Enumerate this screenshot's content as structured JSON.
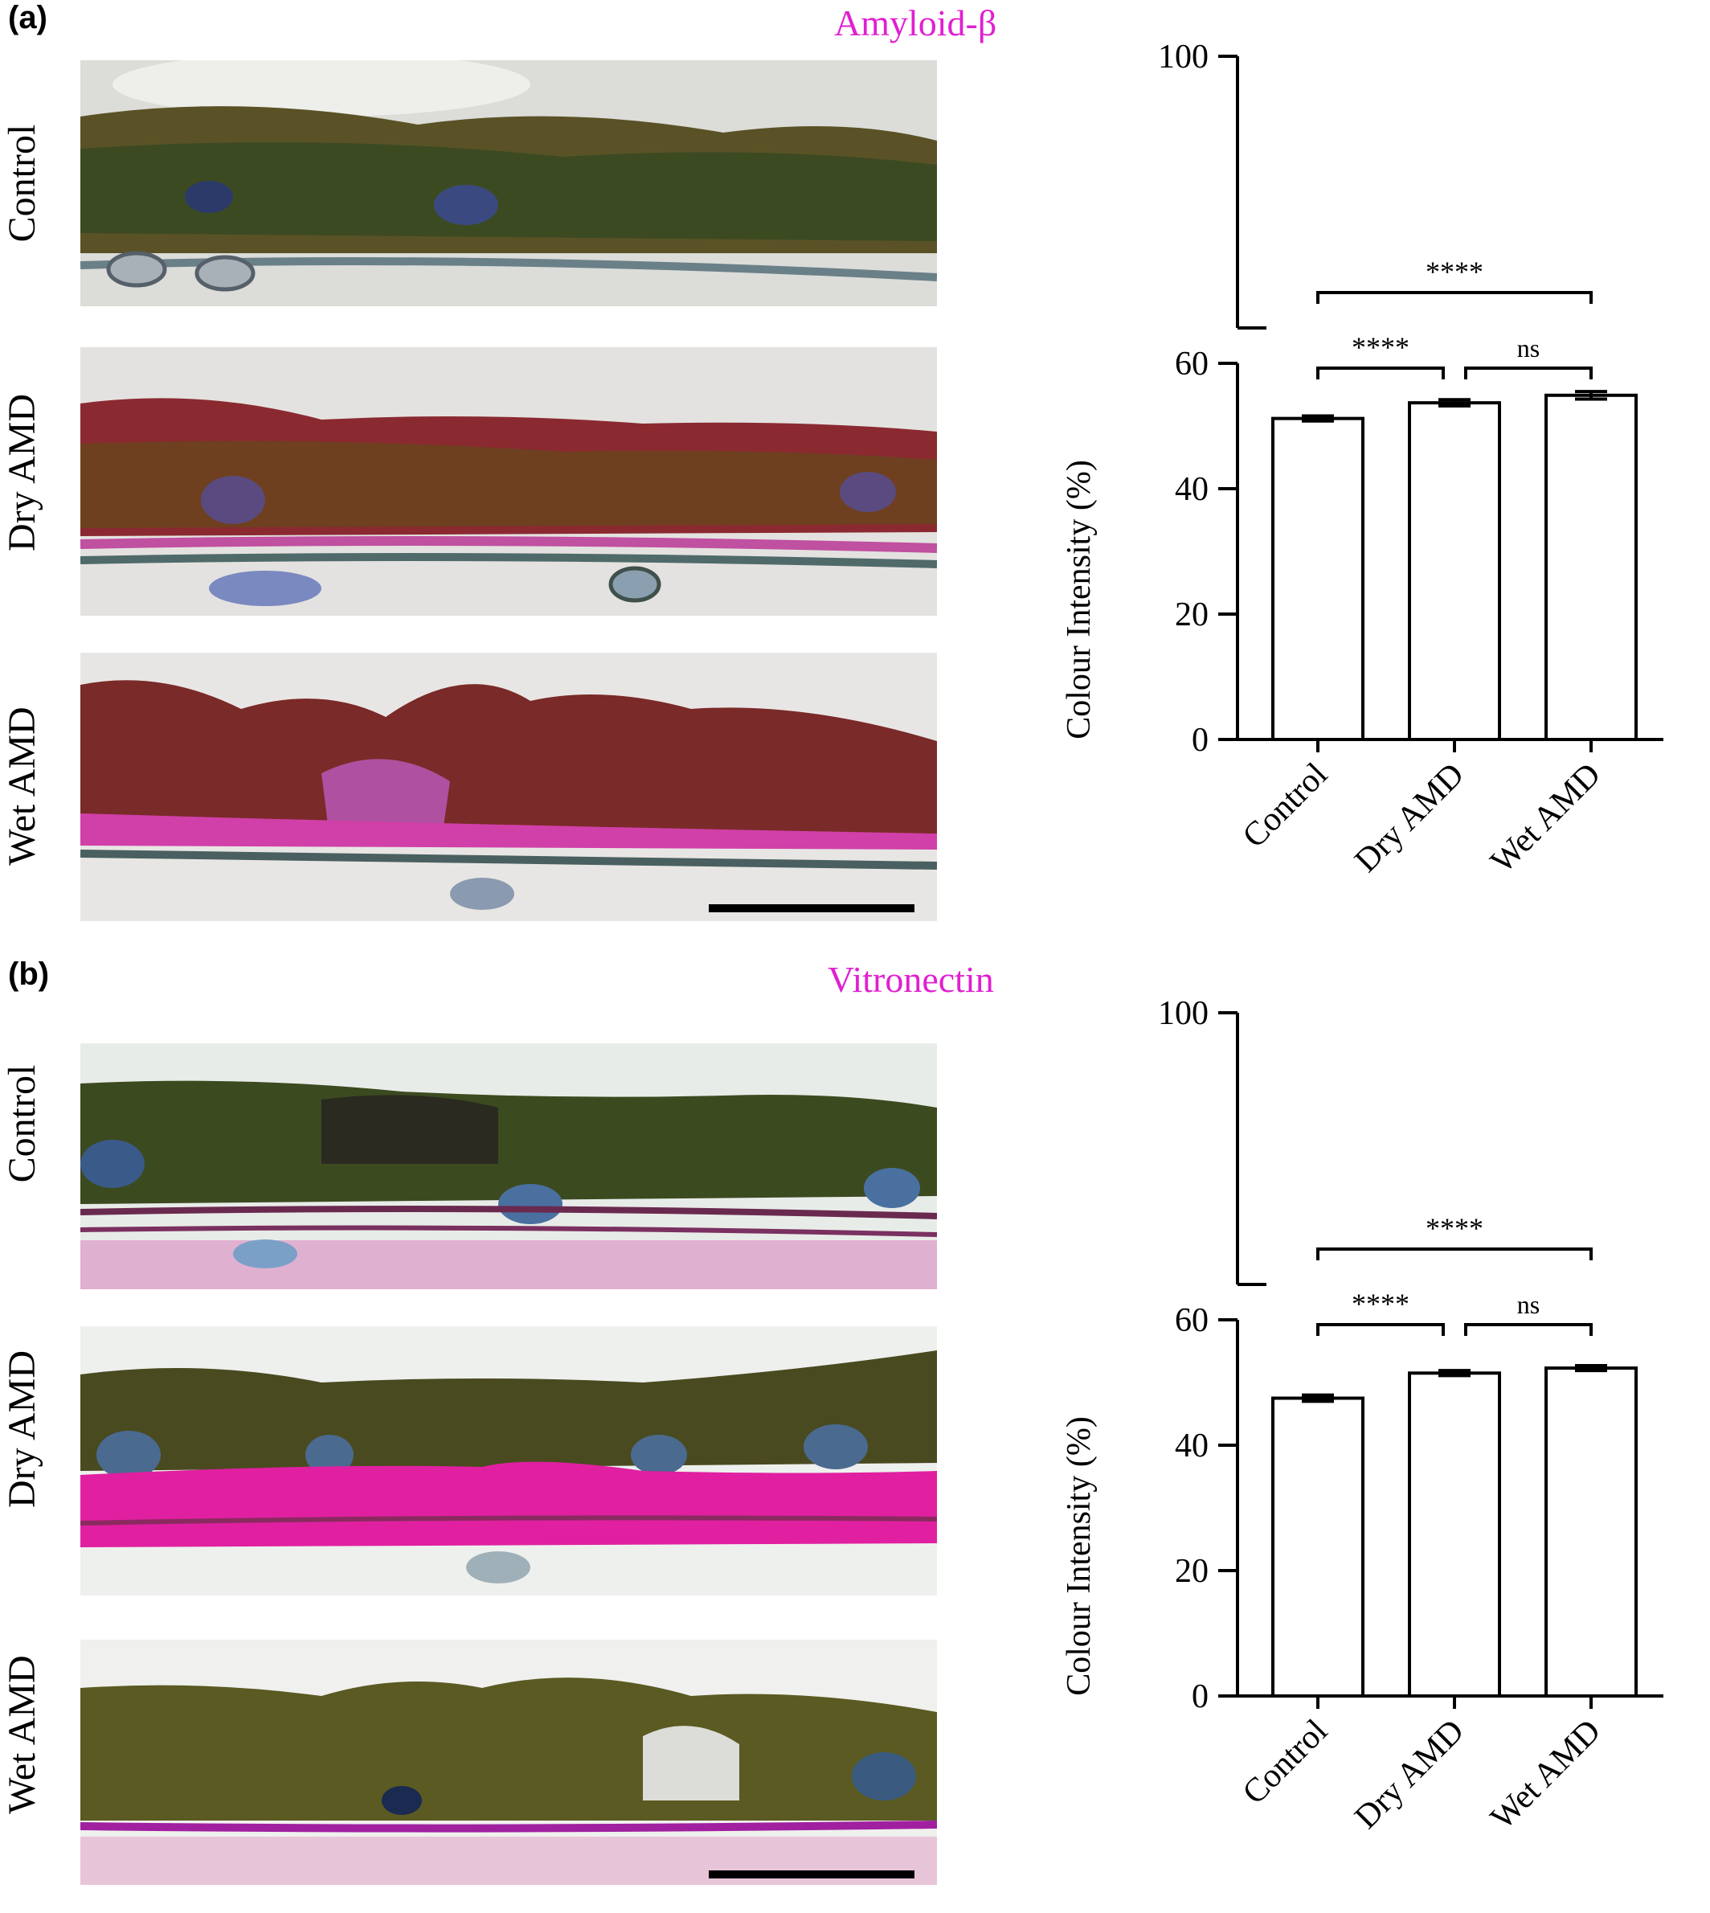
{
  "panel_a": {
    "label": "(a)",
    "stain": "Amyloid-β",
    "rows": [
      "Control",
      "Dry AMD",
      "Wet AMD"
    ]
  },
  "panel_b": {
    "label": "(b)",
    "stain": "Vitronectin",
    "rows": [
      "Control",
      "Dry AMD",
      "Wet AMD"
    ]
  },
  "colors": {
    "stain_label": "#e020d0",
    "bar_fill": "#ffffff",
    "bar_stroke": "#000000"
  },
  "chart_data": [
    {
      "type": "bar",
      "categories": [
        "Control",
        "Dry AMD",
        "Wet AMD"
      ],
      "values": [
        51.2,
        53.7,
        54.9
      ],
      "errors": [
        0.4,
        0.5,
        0.6
      ],
      "ylabel": "Colour Intensity (%)",
      "yticks": [
        0,
        20,
        40,
        60,
        100
      ],
      "ylim": [
        0,
        100
      ],
      "axis_break": [
        60,
        100
      ],
      "significance": [
        {
          "from": 0,
          "to": 2,
          "label": "****"
        },
        {
          "from": 0,
          "to": 1,
          "label": "****"
        },
        {
          "from": 1,
          "to": 2,
          "label": "ns"
        }
      ]
    },
    {
      "type": "bar",
      "categories": [
        "Control",
        "Dry AMD",
        "Wet AMD"
      ],
      "values": [
        47.5,
        51.5,
        52.3
      ],
      "errors": [
        0.5,
        0.4,
        0.4
      ],
      "ylabel": "Colour Intensity (%)",
      "yticks": [
        0,
        20,
        40,
        60,
        100
      ],
      "ylim": [
        0,
        100
      ],
      "axis_break": [
        60,
        100
      ],
      "significance": [
        {
          "from": 0,
          "to": 2,
          "label": "****"
        },
        {
          "from": 0,
          "to": 1,
          "label": "****"
        },
        {
          "from": 1,
          "to": 2,
          "label": "ns"
        }
      ]
    }
  ]
}
